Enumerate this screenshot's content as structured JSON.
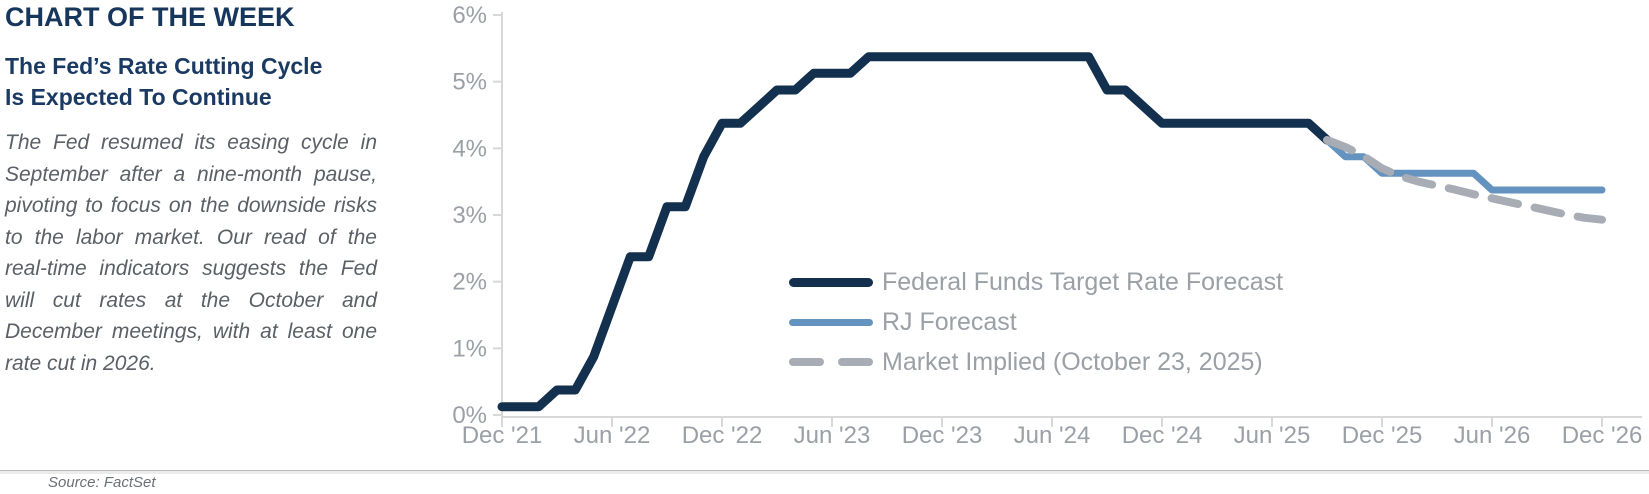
{
  "page": {
    "kicker": "CHART OF THE WEEK",
    "headline_lines": [
      "The Fed’s Rate Cutting Cycle",
      "Is Expected To Continue"
    ],
    "body": "The Fed resumed its easing cycle in September after a nine-month pause, pivoting to focus on the downside risks to the labor market. Our read of the real-time indicators suggests the Fed will cut rates at the October and December meetings, with at least one rate cut in 2026.",
    "source": "Source: FactSet"
  },
  "colors": {
    "heading_navy": "#16365c",
    "fed_funds_line": "#13304f",
    "rj_forecast_line": "#6593bf",
    "market_implied_line": "#a8adb5",
    "axis_gray": "#d8d8d8",
    "tick_text_gray": "#9aa0a6",
    "body_text_gray": "#5a6066"
  },
  "chart_data": {
    "type": "line",
    "title": "",
    "xlabel": "",
    "ylabel": "",
    "ylim": [
      0,
      6
    ],
    "grid": "off",
    "legend_position": "inside-lower-center",
    "x_frequency": "monthly",
    "x_start_label": "Dec 2021",
    "months_per_tick": 6,
    "x_tick_labels": [
      "Dec '21",
      "Jun '22",
      "Dec '22",
      "Jun '23",
      "Dec '23",
      "Jun '24",
      "Dec '24",
      "Jun '25",
      "Dec '25",
      "Jun '26",
      "Dec '26"
    ],
    "y_tick_labels": [
      "0%",
      "1%",
      "2%",
      "3%",
      "4%",
      "5%",
      "6%"
    ],
    "series": [
      {
        "name": "Federal Funds Target Rate Forecast",
        "color": "#13304f",
        "style": "solid",
        "stroke_width": 9,
        "start_month": 0,
        "monthly_values": [
          0.125,
          0.125,
          0.125,
          0.375,
          0.375,
          0.875,
          1.625,
          2.375,
          2.375,
          3.125,
          3.125,
          3.875,
          4.375,
          4.375,
          4.625,
          4.875,
          4.875,
          5.125,
          5.125,
          5.125,
          5.375,
          5.375,
          5.375,
          5.375,
          5.375,
          5.375,
          5.375,
          5.375,
          5.375,
          5.375,
          5.375,
          5.375,
          5.375,
          4.875,
          4.875,
          4.625,
          4.375,
          4.375,
          4.375,
          4.375,
          4.375,
          4.375,
          4.375,
          4.375,
          4.375,
          4.125
        ]
      },
      {
        "name": "RJ Forecast",
        "color": "#6593bf",
        "style": "solid",
        "stroke_width": 7,
        "start_month": 45,
        "monthly_values": [
          4.125,
          3.875,
          3.875,
          3.625,
          3.625,
          3.625,
          3.625,
          3.625,
          3.625,
          3.375,
          3.375,
          3.375,
          3.375,
          3.375,
          3.375,
          3.375
        ]
      },
      {
        "name": "Market Implied (October 23, 2025)",
        "color": "#a8adb5",
        "style": "dashed",
        "stroke_width": 8,
        "start_month": 45,
        "monthly_values": [
          4.125,
          4.02,
          3.88,
          3.7,
          3.58,
          3.5,
          3.44,
          3.38,
          3.31,
          3.25,
          3.19,
          3.13,
          3.07,
          3.01,
          2.96,
          2.93
        ]
      }
    ]
  }
}
